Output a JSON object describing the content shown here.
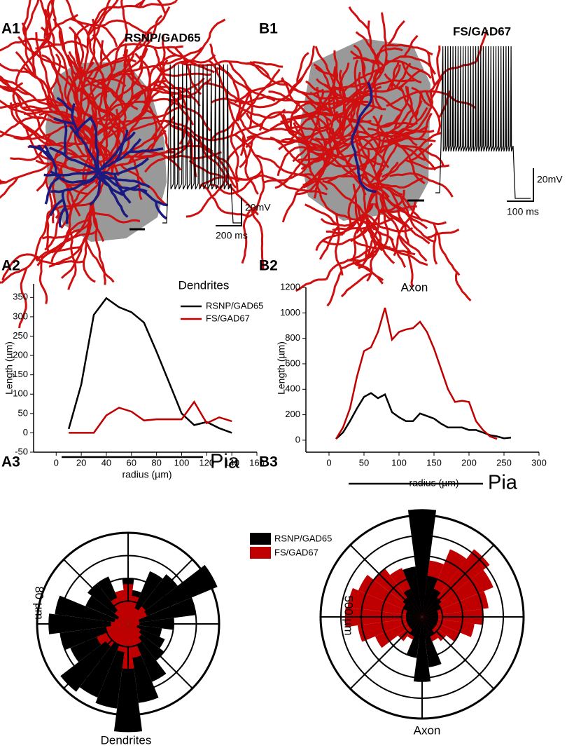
{
  "panel_labels": [
    "A1",
    "B1",
    "A2",
    "B2",
    "A3",
    "B3"
  ],
  "a1": {
    "title": "RSNP/GAD65",
    "scale_v": "20mV",
    "scale_t": "200 ms"
  },
  "b1": {
    "title": "FS/GAD67",
    "scale_v": "20mV",
    "scale_t": "100 ms"
  },
  "legend": {
    "items": [
      {
        "name": "RSNP/GAD65",
        "color": "#000000"
      },
      {
        "name": "FS/GAD67",
        "color": "#c00000"
      }
    ]
  },
  "chart_data": [
    {
      "type": "line",
      "title": "Dendrites",
      "xlabel": "radius (µm)",
      "ylabel": "Length (µm)",
      "xlim": [
        -18,
        160
      ],
      "xticks": [
        0,
        20,
        40,
        60,
        80,
        100,
        120,
        140,
        160
      ],
      "ylim": [
        -50,
        385
      ],
      "yticks": [
        -50,
        0,
        50,
        100,
        150,
        200,
        250,
        300,
        350
      ],
      "legend": "upper right",
      "series": [
        {
          "name": "RSNP/GAD65",
          "color": "#000000",
          "x": [
            10,
            20,
            30,
            40,
            50,
            60,
            70,
            80,
            90,
            100,
            110,
            120,
            130,
            140
          ],
          "values": [
            10,
            125,
            305,
            348,
            325,
            312,
            285,
            210,
            130,
            50,
            20,
            28,
            12,
            0
          ]
        },
        {
          "name": "FS/GAD67",
          "color": "#c00000",
          "x": [
            10,
            20,
            30,
            40,
            50,
            60,
            70,
            80,
            90,
            100,
            110,
            120,
            130,
            140
          ],
          "values": [
            0,
            0,
            0,
            45,
            65,
            55,
            32,
            35,
            35,
            35,
            80,
            25,
            40,
            30
          ]
        }
      ]
    },
    {
      "type": "line",
      "title": "Axon",
      "xlabel": "radius (µm)",
      "ylabel": "Length (µm)",
      "xlim": [
        -33,
        300
      ],
      "xticks": [
        0,
        50,
        100,
        150,
        200,
        250,
        300
      ],
      "ylim": [
        -94,
        1200
      ],
      "yticks": [
        0,
        200,
        400,
        600,
        800,
        1000,
        1200
      ],
      "series": [
        {
          "color": "#000000",
          "x": [
            10,
            20,
            30,
            40,
            50,
            60,
            70,
            80,
            90,
            100,
            110,
            120,
            130,
            140,
            150,
            160,
            170,
            180,
            190,
            200,
            210,
            220,
            230,
            240,
            250,
            260
          ],
          "values": [
            10,
            60,
            150,
            250,
            340,
            370,
            330,
            360,
            220,
            180,
            150,
            150,
            210,
            190,
            170,
            130,
            100,
            100,
            100,
            80,
            80,
            60,
            40,
            30,
            15,
            20
          ]
        },
        {
          "color": "#c00000",
          "x": [
            10,
            20,
            30,
            40,
            50,
            60,
            70,
            80,
            90,
            100,
            110,
            120,
            130,
            140,
            150,
            160,
            170,
            180,
            190,
            200,
            210,
            220,
            230,
            240
          ],
          "values": [
            10,
            100,
            250,
            500,
            700,
            730,
            850,
            1040,
            790,
            850,
            870,
            880,
            930,
            850,
            720,
            560,
            400,
            300,
            310,
            300,
            150,
            80,
            30,
            10
          ]
        }
      ]
    },
    {
      "type": "polar_bar",
      "top_label": "Pia",
      "bottom_label": "Dendrites",
      "scale_label": "80 µm",
      "rlim": [
        0,
        80
      ],
      "rticks": [
        20,
        40,
        60,
        80
      ],
      "series": [
        {
          "color": "#000000",
          "values": [
            40,
            30,
            50,
            55,
            85,
            60,
            40,
            30,
            35,
            40,
            55,
            70,
            95,
            75,
            70,
            75,
            55,
            60,
            70,
            65,
            40,
            45,
            45,
            30
          ]
        },
        {
          "color": "#c00000",
          "values": [
            35,
            25,
            15,
            20,
            18,
            10,
            10,
            8,
            12,
            15,
            20,
            30,
            40,
            25,
            20,
            25,
            30,
            20,
            15,
            12,
            10,
            15,
            25,
            30
          ]
        }
      ]
    },
    {
      "type": "polar_bar",
      "top_label": "Pia",
      "bottom_label": "Axon",
      "scale_label": "500 µm",
      "rlim": [
        0,
        500
      ],
      "rticks": [
        100,
        200,
        300,
        400,
        500
      ],
      "series": [
        {
          "color": "#c00000",
          "values": [
            250,
            280,
            360,
            420,
            380,
            330,
            300,
            260,
            200,
            150,
            130,
            120,
            100,
            100,
            120,
            150,
            250,
            320,
            380,
            370,
            340,
            300,
            260,
            240
          ]
        },
        {
          "color": "#000000",
          "values": [
            530,
            200,
            150,
            120,
            100,
            80,
            80,
            80,
            80,
            80,
            100,
            250,
            320,
            200,
            100,
            80,
            80,
            80,
            80,
            80,
            100,
            120,
            150,
            250
          ]
        }
      ]
    }
  ]
}
